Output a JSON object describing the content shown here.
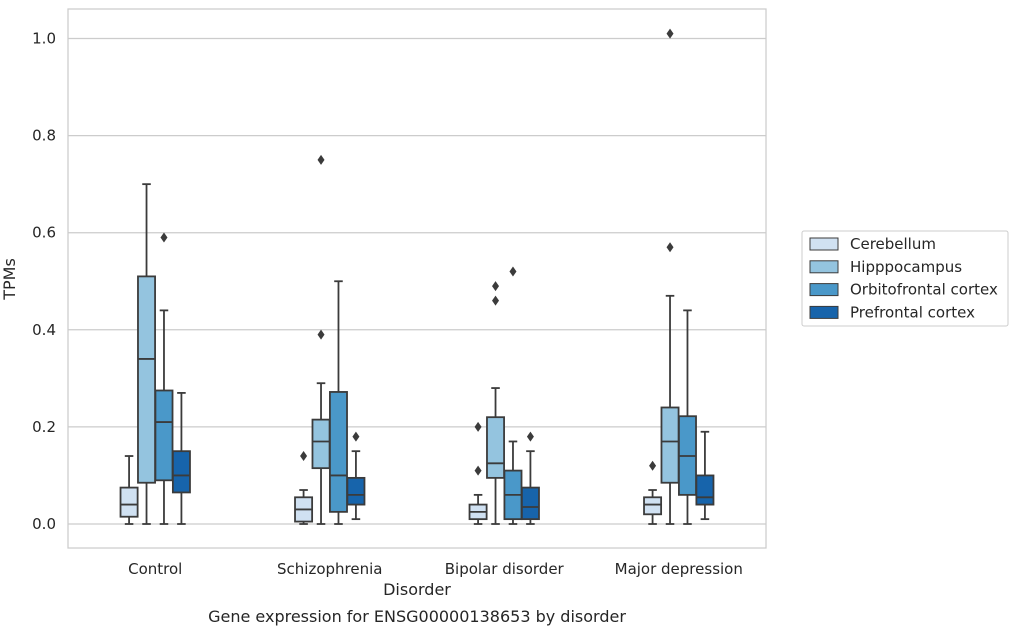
{
  "chart_data": {
    "type": "box",
    "title": "",
    "caption": "Gene expression for ENSG00000138653 by disorder",
    "xlabel": "Disorder",
    "ylabel": "TPMs",
    "ylim": [
      -0.048,
      1.062
    ],
    "yticks": [
      "0.0",
      "0.2",
      "0.4",
      "0.6",
      "0.8",
      "1.0"
    ],
    "grid": "horizontal",
    "legend_placement": "center-right",
    "categories": [
      "Control",
      "Schizophrenia",
      "Bipolar disorder",
      "Major depression"
    ],
    "series": [
      {
        "name": "Cerebellum",
        "color": "#d0e1f2",
        "boxes": [
          {
            "whisker_low": 0.0,
            "q1": 0.015,
            "median": 0.04,
            "q3": 0.075,
            "whisker_high": 0.14,
            "outliers": []
          },
          {
            "whisker_low": 0.0,
            "q1": 0.005,
            "median": 0.03,
            "q3": 0.055,
            "whisker_high": 0.07,
            "outliers": [
              0.14
            ]
          },
          {
            "whisker_low": 0.0,
            "q1": 0.01,
            "median": 0.025,
            "q3": 0.04,
            "whisker_high": 0.06,
            "outliers": [
              0.11,
              0.2
            ]
          },
          {
            "whisker_low": 0.0,
            "q1": 0.02,
            "median": 0.04,
            "q3": 0.055,
            "whisker_high": 0.07,
            "outliers": [
              0.12
            ]
          }
        ]
      },
      {
        "name": "Hipppocampus",
        "color": "#94c4df",
        "boxes": [
          {
            "whisker_low": 0.0,
            "q1": 0.085,
            "median": 0.34,
            "q3": 0.51,
            "whisker_high": 0.7,
            "outliers": []
          },
          {
            "whisker_low": 0.0,
            "q1": 0.115,
            "median": 0.17,
            "q3": 0.215,
            "whisker_high": 0.29,
            "outliers": [
              0.39,
              0.75
            ]
          },
          {
            "whisker_low": 0.0,
            "q1": 0.095,
            "median": 0.125,
            "q3": 0.22,
            "whisker_high": 0.28,
            "outliers": [
              0.46,
              0.49
            ]
          },
          {
            "whisker_low": 0.0,
            "q1": 0.085,
            "median": 0.17,
            "q3": 0.24,
            "whisker_high": 0.47,
            "outliers": [
              0.57,
              1.01
            ]
          }
        ]
      },
      {
        "name": "Orbitofrontal cortex",
        "color": "#4a98c9",
        "boxes": [
          {
            "whisker_low": 0.0,
            "q1": 0.09,
            "median": 0.21,
            "q3": 0.275,
            "whisker_high": 0.44,
            "outliers": [
              0.59
            ]
          },
          {
            "whisker_low": 0.0,
            "q1": 0.025,
            "median": 0.1,
            "q3": 0.272,
            "whisker_high": 0.5,
            "outliers": []
          },
          {
            "whisker_low": 0.0,
            "q1": 0.01,
            "median": 0.06,
            "q3": 0.11,
            "whisker_high": 0.17,
            "outliers": [
              0.52
            ]
          },
          {
            "whisker_low": 0.0,
            "q1": 0.06,
            "median": 0.14,
            "q3": 0.222,
            "whisker_high": 0.44,
            "outliers": []
          }
        ]
      },
      {
        "name": "Prefrontal cortex",
        "color": "#1764ab",
        "boxes": [
          {
            "whisker_low": 0.0,
            "q1": 0.065,
            "median": 0.1,
            "q3": 0.15,
            "whisker_high": 0.27,
            "outliers": []
          },
          {
            "whisker_low": 0.01,
            "q1": 0.04,
            "median": 0.06,
            "q3": 0.095,
            "whisker_high": 0.15,
            "outliers": [
              0.18
            ]
          },
          {
            "whisker_low": 0.0,
            "q1": 0.01,
            "median": 0.035,
            "q3": 0.075,
            "whisker_high": 0.15,
            "outliers": [
              0.18
            ]
          },
          {
            "whisker_low": 0.01,
            "q1": 0.04,
            "median": 0.055,
            "q3": 0.1,
            "whisker_high": 0.19,
            "outliers": []
          }
        ]
      }
    ]
  }
}
